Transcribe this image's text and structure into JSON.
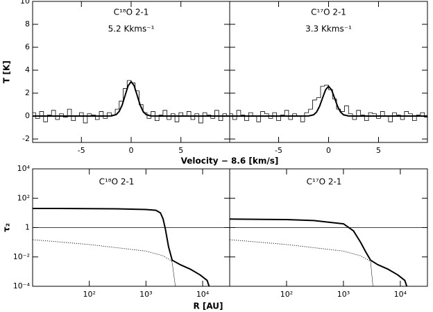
{
  "chart_data": [
    {
      "type": "line",
      "ylabel": "T [K]",
      "xlabel": "Velocity − 8.6 [km/s]",
      "annotations": [
        "C¹⁸O 2-1",
        "5.2 Kkms⁻¹"
      ],
      "xlim": [
        -9.9,
        9.9
      ],
      "xticks": [
        -5,
        0,
        5
      ],
      "ylim": [
        -2.3,
        10
      ],
      "yticks": [
        -2,
        0,
        2,
        4,
        6,
        8,
        10
      ],
      "ytick_labels": true,
      "series": [
        {
          "style": "step",
          "color": "#000000",
          "x": [
            -9.8,
            -9.4,
            -9.0,
            -8.6,
            -8.2,
            -7.8,
            -7.4,
            -7.0,
            -6.6,
            -6.2,
            -5.8,
            -5.4,
            -5.0,
            -4.6,
            -4.2,
            -3.8,
            -3.4,
            -3.0,
            -2.6,
            -2.2,
            -1.8,
            -1.4,
            -1.0,
            -0.6,
            -0.2,
            0.2,
            0.6,
            1.0,
            1.4,
            1.8,
            2.2,
            2.6,
            3.0,
            3.4,
            3.8,
            4.2,
            4.6,
            5.0,
            5.4,
            5.8,
            6.2,
            6.6,
            7.0,
            7.4,
            7.8,
            8.2,
            8.6,
            9.0,
            9.4,
            9.8
          ],
          "values": [
            0.3,
            -0.2,
            0.4,
            -0.5,
            0.1,
            0.5,
            -0.3,
            0.2,
            -0.1,
            0.6,
            -0.4,
            0.0,
            0.3,
            -0.6,
            0.2,
            0.1,
            -0.3,
            0.4,
            -0.2,
            0.3,
            0.1,
            0.6,
            1.3,
            2.4,
            3.1,
            2.9,
            2.2,
            1.0,
            0.3,
            -0.2,
            0.4,
            -0.4,
            0.1,
            0.5,
            -0.3,
            0.2,
            -0.5,
            0.3,
            0.0,
            0.4,
            -0.3,
            0.2,
            -0.6,
            0.3,
            0.1,
            -0.2,
            0.5,
            -0.4,
            0.2,
            0.0
          ]
        },
        {
          "style": "thick",
          "color": "#000000",
          "x": [
            -10,
            -3,
            -2,
            -1.5,
            -1.2,
            -0.9,
            -0.6,
            -0.3,
            0,
            0.3,
            0.6,
            0.9,
            1.2,
            1.5,
            2,
            3,
            10
          ],
          "values": [
            0,
            0,
            0.01,
            0.13,
            0.41,
            0.97,
            1.82,
            2.65,
            3.0,
            2.65,
            1.82,
            0.97,
            0.41,
            0.13,
            0.01,
            0,
            0
          ]
        }
      ]
    },
    {
      "type": "line",
      "annotations": [
        "C¹⁷O 2-1",
        "3.3 Kkms⁻¹"
      ],
      "xlim": [
        -9.9,
        9.9
      ],
      "xticks": [
        -5,
        0,
        5
      ],
      "ylim": [
        -2.3,
        10
      ],
      "yticks": [
        -2,
        0,
        2,
        4,
        6,
        8,
        10
      ],
      "ytick_labels": false,
      "series": [
        {
          "style": "step",
          "color": "#000000",
          "x": [
            -9.8,
            -9.4,
            -9.0,
            -8.6,
            -8.2,
            -7.8,
            -7.4,
            -7.0,
            -6.6,
            -6.2,
            -5.8,
            -5.4,
            -5.0,
            -4.6,
            -4.2,
            -3.8,
            -3.4,
            -3.0,
            -2.6,
            -2.2,
            -1.8,
            -1.4,
            -1.0,
            -0.6,
            -0.2,
            0.2,
            0.6,
            1.0,
            1.4,
            1.8,
            2.2,
            2.6,
            3.0,
            3.4,
            3.8,
            4.2,
            4.6,
            5.0,
            5.4,
            5.8,
            6.2,
            6.6,
            7.0,
            7.4,
            7.8,
            8.2,
            8.6,
            9.0,
            9.4,
            9.8
          ],
          "values": [
            0.2,
            -0.3,
            0.5,
            0.1,
            -0.4,
            0.3,
            0.0,
            -0.5,
            0.4,
            0.2,
            -0.2,
            0.3,
            -0.4,
            0.1,
            0.5,
            -0.3,
            0.2,
            0.0,
            -0.5,
            0.3,
            0.6,
            1.4,
            1.6,
            2.6,
            2.7,
            2.3,
            1.5,
            0.6,
            0.4,
            0.9,
            0.2,
            -0.3,
            0.5,
            0.1,
            -0.4,
            0.3,
            0.2,
            -0.2,
            0.4,
            0.0,
            -0.5,
            0.3,
            0.1,
            -0.3,
            0.4,
            0.2,
            -0.4,
            0.1,
            0.3,
            -0.1
          ]
        },
        {
          "style": "thick",
          "color": "#000000",
          "x": [
            -10,
            -3,
            -2,
            -1.5,
            -1.2,
            -0.9,
            -0.6,
            -0.3,
            0,
            0.3,
            0.6,
            0.9,
            1.2,
            1.5,
            2,
            3,
            10
          ],
          "values": [
            0,
            0,
            0.01,
            0.11,
            0.35,
            0.85,
            1.58,
            2.29,
            2.6,
            2.29,
            1.58,
            0.85,
            0.35,
            0.11,
            0.01,
            0,
            0
          ]
        }
      ]
    },
    {
      "type": "line",
      "ylabel": "τ₂",
      "xlabel": "R [AU]",
      "log_x": true,
      "log_y": true,
      "annotations": [
        "C¹⁸O 2-1"
      ],
      "reference_line": 1,
      "xlim": [
        10,
        30000
      ],
      "xticks": [
        {
          "value": 100,
          "label": "10²"
        },
        {
          "value": 1000,
          "label": "10³"
        },
        {
          "value": 10000,
          "label": "10⁴"
        }
      ],
      "ylim": [
        0.0001,
        10000
      ],
      "yticks": [
        {
          "value": 0.0001,
          "label": "10⁻⁴"
        },
        {
          "value": 0.01,
          "label": "10⁻²"
        },
        1,
        {
          "value": 100,
          "label": "10²"
        },
        {
          "value": 10000,
          "label": "10⁴"
        }
      ],
      "ytick_labels": true,
      "series": [
        {
          "style": "thick",
          "color": "#000000",
          "x": [
            10,
            30,
            100,
            300,
            1000,
            1500,
            1800,
            2000,
            2200,
            2500,
            2900,
            4000,
            6000,
            9000,
            12000,
            13000
          ],
          "values": [
            20,
            20,
            19.5,
            19,
            17,
            15,
            10,
            4,
            0.8,
            0.05,
            0.006,
            0.003,
            0.0015,
            0.0006,
            0.00025,
            0.0001
          ]
        },
        {
          "style": "dotted",
          "color": "#000000",
          "x": [
            10,
            100,
            1000,
            2000,
            2900
          ],
          "values": [
            0.15,
            0.07,
            0.025,
            0.012,
            0.005
          ]
        },
        {
          "style": "thin",
          "color": "#000000",
          "x": [
            2200,
            2500,
            2900,
            3300
          ],
          "values": [
            0.8,
            0.05,
            0.004,
            0.0001
          ]
        }
      ]
    },
    {
      "type": "line",
      "log_x": true,
      "log_y": true,
      "annotations": [
        "C¹⁷O 2-1"
      ],
      "reference_line": 1,
      "xlim": [
        10,
        30000
      ],
      "xticks": [
        {
          "value": 100,
          "label": "10²"
        },
        {
          "value": 1000,
          "label": "10³"
        },
        {
          "value": 10000,
          "label": "10⁴"
        }
      ],
      "ylim": [
        0.0001,
        10000
      ],
      "yticks": [
        {
          "value": 0.0001,
          "label": "10⁻⁴"
        },
        {
          "value": 0.01,
          "label": "10⁻²"
        },
        1,
        {
          "value": 100,
          "label": "10²"
        },
        {
          "value": 10000,
          "label": "10⁴"
        }
      ],
      "ytick_labels": false,
      "series": [
        {
          "style": "thick",
          "color": "#000000",
          "x": [
            10,
            100,
            300,
            1000,
            1500,
            2000,
            2500,
            3000,
            4000,
            6000,
            9000,
            12000,
            13000
          ],
          "values": [
            3.8,
            3.5,
            3.0,
            1.8,
            0.6,
            0.1,
            0.02,
            0.006,
            0.003,
            0.0015,
            0.0006,
            0.00025,
            0.0001
          ]
        },
        {
          "style": "dotted",
          "color": "#000000",
          "x": [
            10,
            100,
            1000,
            2000,
            3000
          ],
          "values": [
            0.15,
            0.07,
            0.025,
            0.012,
            0.005
          ]
        },
        {
          "style": "thin",
          "color": "#000000",
          "x": [
            3000,
            3300
          ],
          "values": [
            0.005,
            0.0001
          ]
        }
      ]
    }
  ]
}
